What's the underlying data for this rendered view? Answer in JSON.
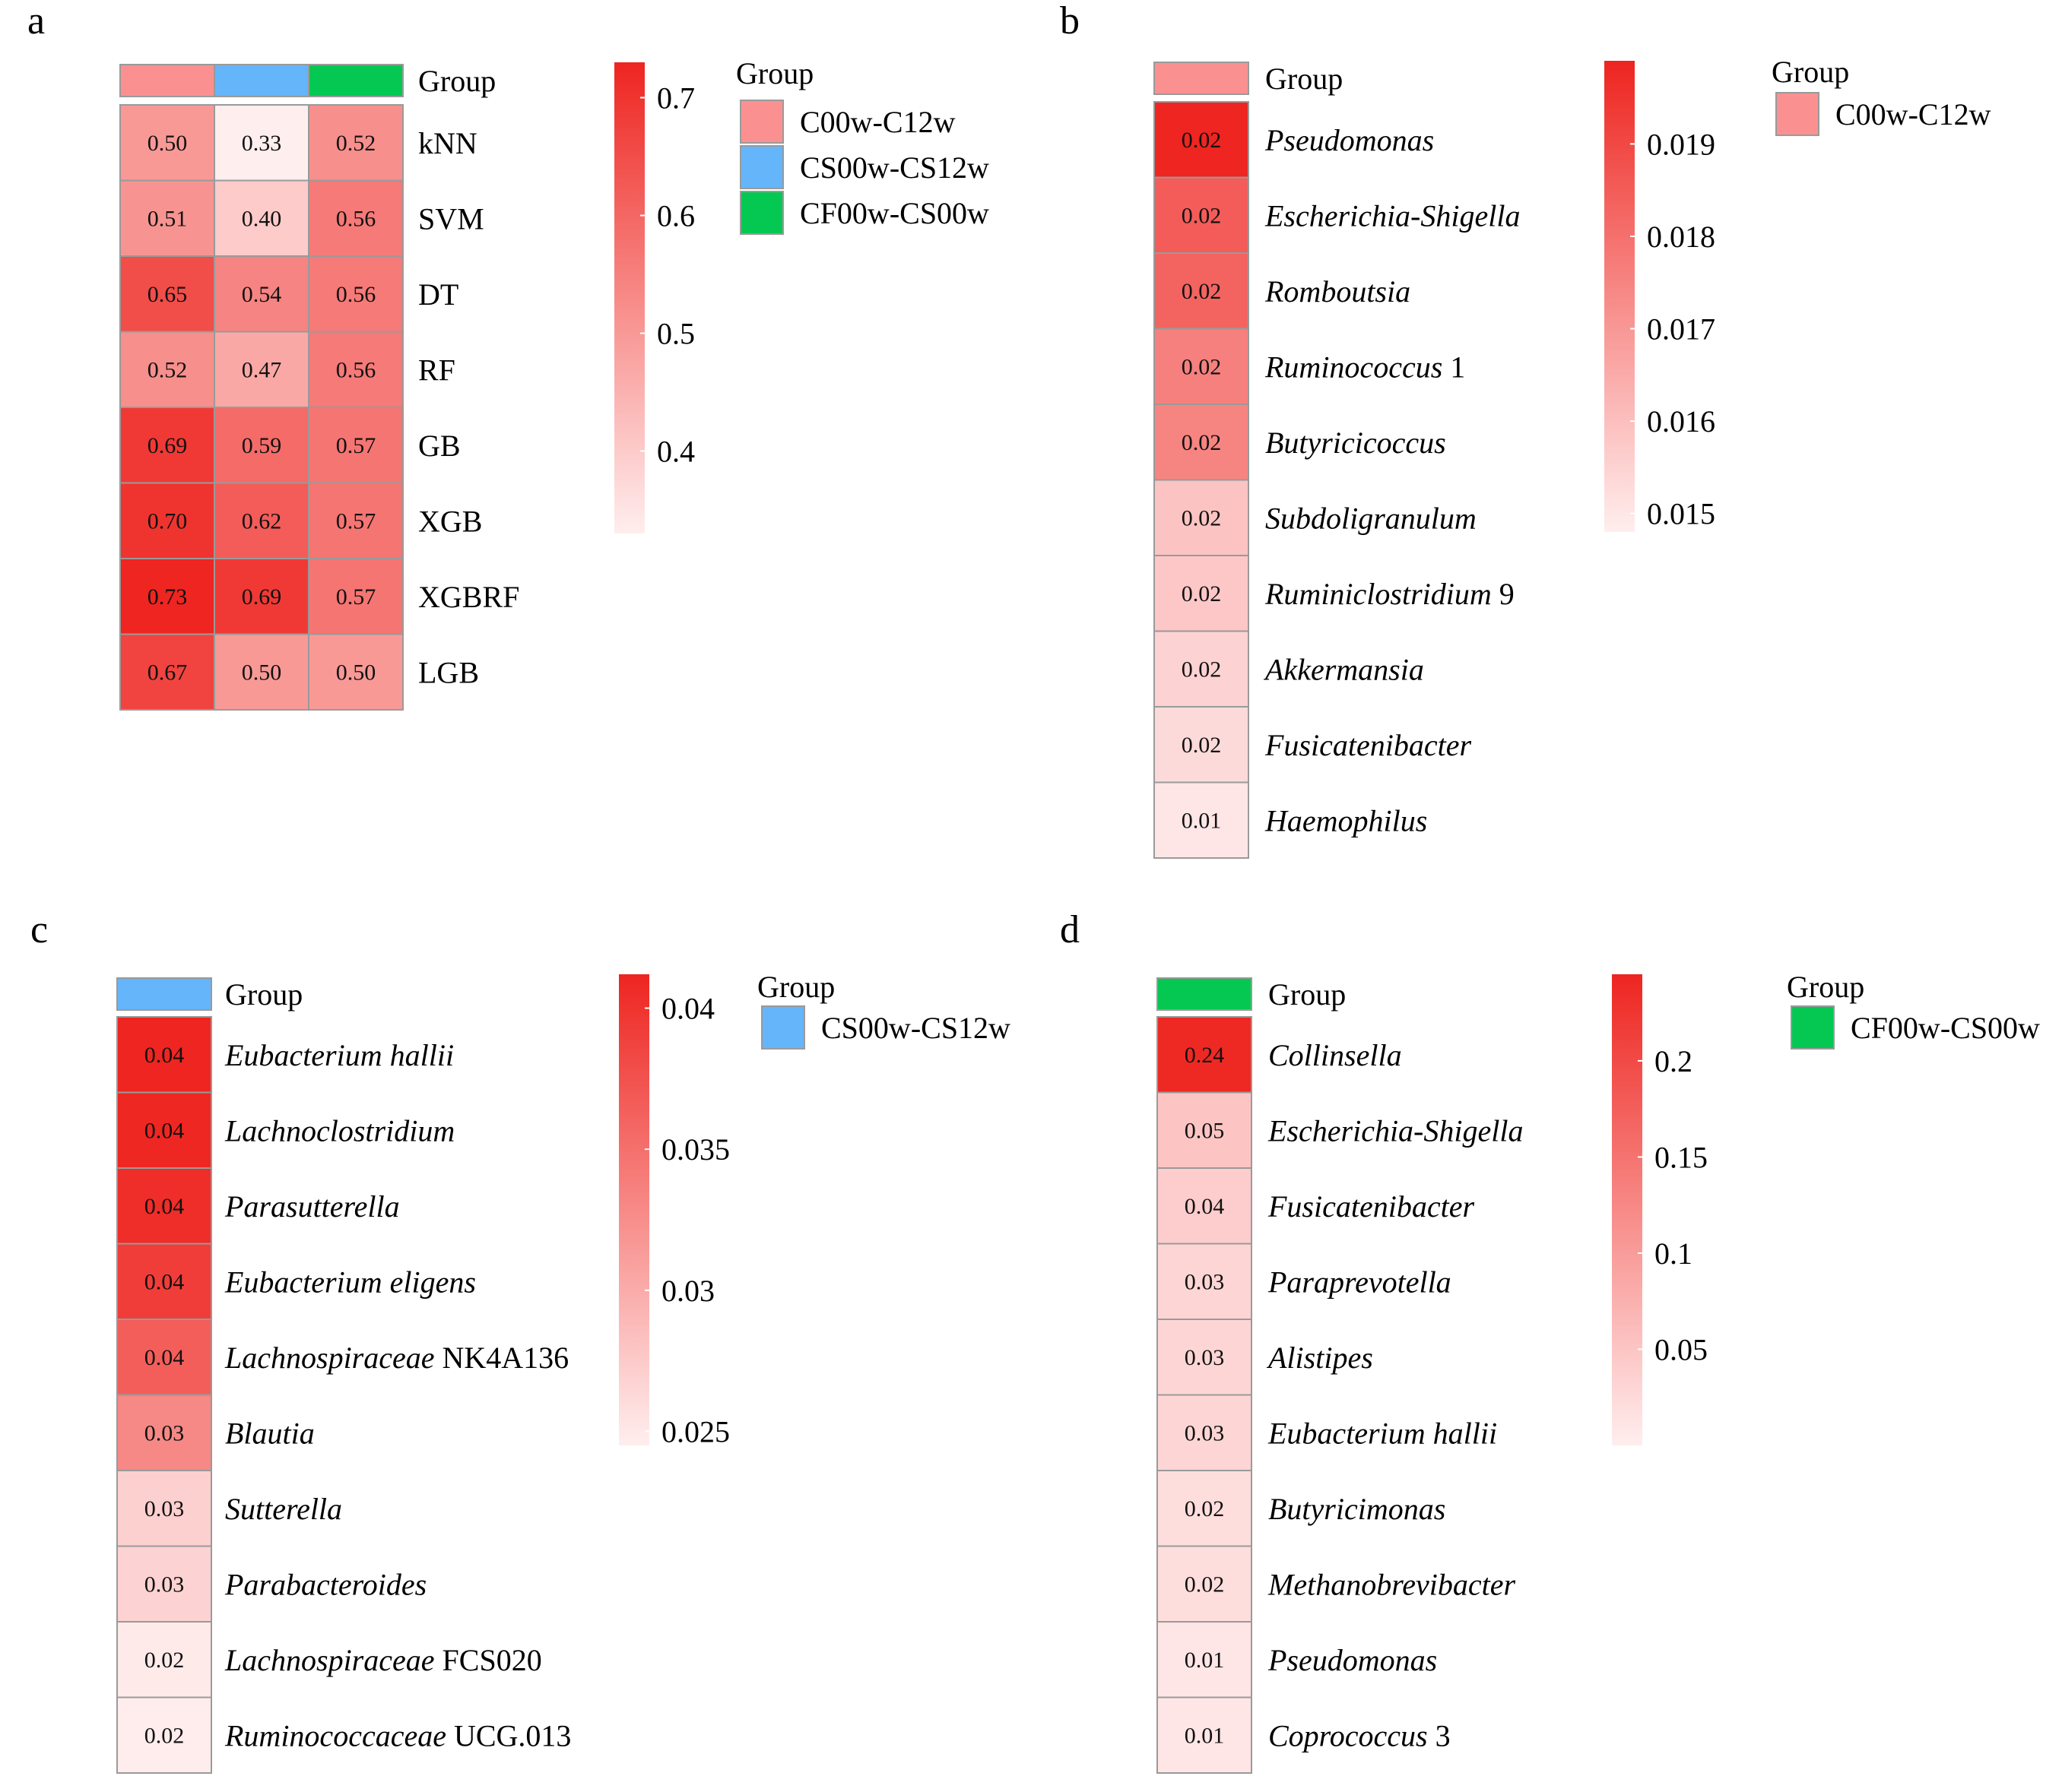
{
  "chart_data": [
    {
      "panel": "a",
      "type": "heatmap",
      "annotation_title": "Group",
      "columns": [
        "C00w-C12w",
        "CS00w-CS12w",
        "CF00w-CS00w"
      ],
      "group_colors": [
        "#FA9190",
        "#64B5FA",
        "#05C853"
      ],
      "rows": [
        {
          "label": "kNN",
          "italic": "",
          "rest": "",
          "display": [
            "0.50",
            "0.33",
            "0.52"
          ],
          "values": [
            0.5,
            0.33,
            0.52
          ]
        },
        {
          "label": "SVM",
          "italic": "",
          "rest": "",
          "display": [
            "0.51",
            "0.40",
            "0.56"
          ],
          "values": [
            0.51,
            0.4,
            0.56
          ]
        },
        {
          "label": "DT",
          "italic": "",
          "rest": "",
          "display": [
            "0.65",
            "0.54",
            "0.56"
          ],
          "values": [
            0.65,
            0.54,
            0.56
          ]
        },
        {
          "label": "RF",
          "italic": "",
          "rest": "",
          "display": [
            "0.52",
            "0.47",
            "0.56"
          ],
          "values": [
            0.52,
            0.47,
            0.56
          ]
        },
        {
          "label": "GB",
          "italic": "",
          "rest": "",
          "display": [
            "0.69",
            "0.59",
            "0.57"
          ],
          "values": [
            0.69,
            0.59,
            0.57
          ]
        },
        {
          "label": "XGB",
          "italic": "",
          "rest": "",
          "display": [
            "0.70",
            "0.62",
            "0.57"
          ],
          "values": [
            0.7,
            0.62,
            0.57
          ]
        },
        {
          "label": "XGBRF",
          "italic": "",
          "rest": "",
          "display": [
            "0.73",
            "0.69",
            "0.57"
          ],
          "values": [
            0.73,
            0.69,
            0.57
          ]
        },
        {
          "label": "LGB",
          "italic": "",
          "rest": "",
          "display": [
            "0.67",
            "0.50",
            "0.50"
          ],
          "values": [
            0.67,
            0.5,
            0.5
          ]
        }
      ],
      "colorbar": {
        "range": [
          0.33,
          0.73
        ],
        "ticks": [
          0.4,
          0.5,
          0.6,
          0.7
        ],
        "tick_labels": [
          "0.4",
          "0.5",
          "0.6",
          "0.7"
        ]
      },
      "legend": {
        "title": "Group",
        "items": [
          "C00w-C12w",
          "CS00w-CS12w",
          "CF00w-CS00w"
        ]
      }
    },
    {
      "panel": "b",
      "type": "heatmap",
      "annotation_title": "Group",
      "columns": [
        "C00w-C12w"
      ],
      "group_colors": [
        "#FA9190"
      ],
      "rows": [
        {
          "label": "",
          "italic": "Pseudomonas",
          "rest": "",
          "display": [
            "0.02"
          ],
          "values": [
            0.0199
          ]
        },
        {
          "label": "",
          "italic": "Escherichia-Shigella",
          "rest": "",
          "display": [
            "0.02"
          ],
          "values": [
            0.0185
          ]
        },
        {
          "label": "",
          "italic": "Romboutsia",
          "rest": "",
          "display": [
            "0.02"
          ],
          "values": [
            0.0183
          ]
        },
        {
          "label": "",
          "italic": "Ruminococcus",
          "rest": " 1",
          "display": [
            "0.02"
          ],
          "values": [
            0.0176
          ]
        },
        {
          "label": "",
          "italic": "Butyricicoccus",
          "rest": "",
          "display": [
            "0.02"
          ],
          "values": [
            0.0175
          ]
        },
        {
          "label": "",
          "italic": "Subdoligranulum",
          "rest": "",
          "display": [
            "0.02"
          ],
          "values": [
            0.0159
          ]
        },
        {
          "label": "",
          "italic": "Ruminiclostridium",
          "rest": " 9",
          "display": [
            "0.02"
          ],
          "values": [
            0.0158
          ]
        },
        {
          "label": "",
          "italic": "Akkermansia",
          "rest": "",
          "display": [
            "0.02"
          ],
          "values": [
            0.0155
          ]
        },
        {
          "label": "",
          "italic": "Fusicatenibacter",
          "rest": "",
          "display": [
            "0.02"
          ],
          "values": [
            0.0153
          ]
        },
        {
          "label": "",
          "italic": "Haemophilus",
          "rest": "",
          "display": [
            "0.01"
          ],
          "values": [
            0.015
          ]
        }
      ],
      "colorbar": {
        "range": [
          0.0148,
          0.0199
        ],
        "ticks": [
          0.015,
          0.016,
          0.017,
          0.018,
          0.019
        ],
        "tick_labels": [
          "0.015",
          "0.016",
          "0.017",
          "0.018",
          "0.019"
        ]
      },
      "legend": {
        "title": "Group",
        "items": [
          "C00w-C12w"
        ]
      }
    },
    {
      "panel": "c",
      "type": "heatmap",
      "annotation_title": "Group",
      "columns": [
        "CS00w-CS12w"
      ],
      "group_colors": [
        "#64B5FA"
      ],
      "rows": [
        {
          "label": "",
          "italic": "Eubacterium hallii",
          "rest": "",
          "display": [
            "0.04"
          ],
          "values": [
            0.0412
          ]
        },
        {
          "label": "",
          "italic": "Lachnoclostridium",
          "rest": "",
          "display": [
            "0.04"
          ],
          "values": [
            0.041
          ]
        },
        {
          "label": "",
          "italic": "Parasutterella",
          "rest": "",
          "display": [
            "0.04"
          ],
          "values": [
            0.0405
          ]
        },
        {
          "label": "",
          "italic": "Eubacterium eligens",
          "rest": "",
          "display": [
            "0.04"
          ],
          "values": [
            0.0392
          ]
        },
        {
          "label": "",
          "italic": "Lachnospiraceae",
          "rest": " NK4A136",
          "display": [
            "0.04"
          ],
          "values": [
            0.0365
          ]
        },
        {
          "label": "",
          "italic": "Blautia",
          "rest": "",
          "display": [
            "0.03"
          ],
          "values": [
            0.033
          ]
        },
        {
          "label": "",
          "italic": "Sutterella",
          "rest": "",
          "display": [
            "0.03"
          ],
          "values": [
            0.027
          ]
        },
        {
          "label": "",
          "italic": "Parabacteroides",
          "rest": "",
          "display": [
            "0.03"
          ],
          "values": [
            0.0268
          ]
        },
        {
          "label": "",
          "italic": "Lachnospiraceae",
          "rest": " FCS020",
          "display": [
            "0.02"
          ],
          "values": [
            0.0248
          ]
        },
        {
          "label": "",
          "italic": "Ruminococcaceae",
          "rest": " UCG.013",
          "display": [
            "0.02"
          ],
          "values": [
            0.0246
          ]
        }
      ],
      "colorbar": {
        "range": [
          0.0245,
          0.0412
        ],
        "ticks": [
          0.025,
          0.03,
          0.035,
          0.04
        ],
        "tick_labels": [
          "0.025",
          "0.03",
          "0.035",
          "0.04"
        ]
      },
      "legend": {
        "title": "Group",
        "items": [
          "CS00w-CS12w"
        ]
      }
    },
    {
      "panel": "d",
      "type": "heatmap",
      "annotation_title": "Group",
      "columns": [
        "CF00w-CS00w"
      ],
      "group_colors": [
        "#05C853"
      ],
      "rows": [
        {
          "label": "",
          "italic": "Collinsella",
          "rest": "",
          "display": [
            "0.24"
          ],
          "values": [
            0.24
          ]
        },
        {
          "label": "",
          "italic": "Escherichia-Shigella",
          "rest": "",
          "display": [
            "0.05"
          ],
          "values": [
            0.05
          ]
        },
        {
          "label": "",
          "italic": "Fusicatenibacter",
          "rest": "",
          "display": [
            "0.04"
          ],
          "values": [
            0.04
          ]
        },
        {
          "label": "",
          "italic": "Paraprevotella",
          "rest": "",
          "display": [
            "0.03"
          ],
          "values": [
            0.03
          ]
        },
        {
          "label": "",
          "italic": "Alistipes",
          "rest": "",
          "display": [
            "0.03"
          ],
          "values": [
            0.03
          ]
        },
        {
          "label": "",
          "italic": "Eubacterium hallii",
          "rest": "",
          "display": [
            "0.03"
          ],
          "values": [
            0.03
          ]
        },
        {
          "label": "",
          "italic": "Butyricimonas",
          "rest": "",
          "display": [
            "0.02"
          ],
          "values": [
            0.02
          ]
        },
        {
          "label": "",
          "italic": "Methanobrevibacter",
          "rest": "",
          "display": [
            "0.02"
          ],
          "values": [
            0.02
          ]
        },
        {
          "label": "",
          "italic": "Pseudomonas",
          "rest": "",
          "display": [
            "0.01"
          ],
          "values": [
            0.01
          ]
        },
        {
          "label": "",
          "italic": "Coprococcus",
          "rest": " 3",
          "display": [
            "0.01"
          ],
          "values": [
            0.01
          ]
        }
      ],
      "colorbar": {
        "range": [
          0.0,
          0.245
        ],
        "ticks": [
          0.05,
          0.1,
          0.15,
          0.2
        ],
        "tick_labels": [
          "0.05",
          "0.1",
          "0.15",
          "0.2"
        ]
      },
      "legend": {
        "title": "Group",
        "items": [
          "CF00w-CS00w"
        ]
      }
    }
  ]
}
